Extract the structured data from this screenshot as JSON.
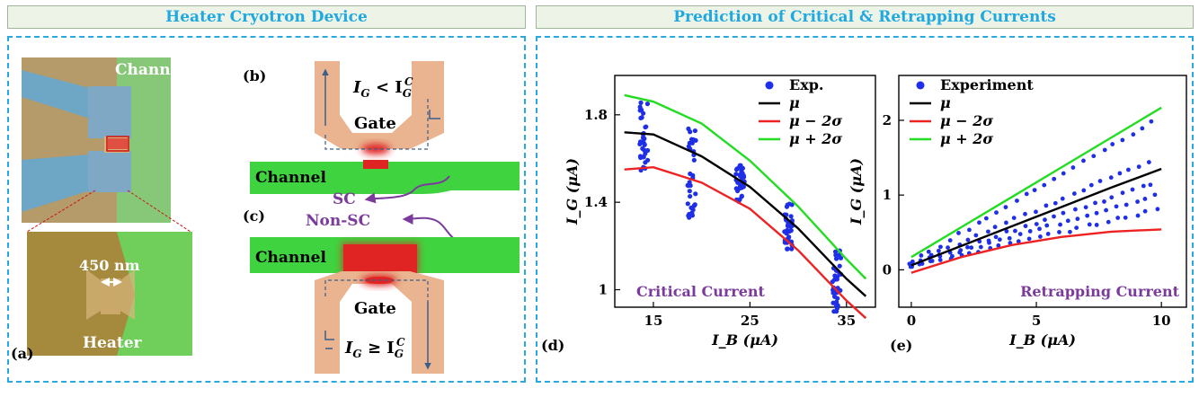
{
  "headers": {
    "left": "Heater Cryotron Device",
    "right": "Prediction of Critical & Retrapping Currents"
  },
  "device": {
    "panel_a": "(a)",
    "panel_b": "(b)",
    "panel_c": "(c)",
    "panel_d": "(d)",
    "panel_e": "(e)",
    "channel_label": "Channel",
    "heater_label": "Heater",
    "width_label": "450 nm",
    "gate_label": "Gate",
    "sc_label": "SC",
    "nonsc_label": "Non-SC",
    "cond_lt_main": "I",
    "cond_lt_sub": "G",
    "cond_lt_op": " < I",
    "cond_lt_sub2": "G",
    "cond_lt_sup2": "C",
    "cond_ge_main": "I",
    "cond_ge_sub": "G",
    "cond_ge_op": " ≥ I",
    "cond_ge_sub2": "G",
    "cond_ge_sup2": "C"
  },
  "colors": {
    "channel_green": "#3fd43f",
    "gate_tan": "#e9b48f",
    "hot_red": "#e02424",
    "dots_blue": "#1f2fe8",
    "mu_black": "#000000",
    "minus_red": "#ee2222",
    "plus_green": "#22dd22",
    "arrow_purple": "#7a3b9c",
    "frame_blue": "#2aa8e0"
  },
  "chart_data": [
    {
      "type": "scatter",
      "title": "Critical Current",
      "xlabel": "I_B (μA)",
      "ylabel": "I_G (μA)",
      "xlim": [
        11,
        38
      ],
      "ylim": [
        0.92,
        1.98
      ],
      "xticks": [
        "15",
        "25",
        "35"
      ],
      "xtick_values": [
        15,
        25,
        35
      ],
      "yticks": [
        "1",
        "1.4",
        "1.8"
      ],
      "ytick_values": [
        1,
        1.4,
        1.8
      ],
      "legend": [
        "Exp.",
        "μ",
        "μ − 2σ",
        "μ + 2σ"
      ],
      "scatter_clusters": [
        {
          "x": 14,
          "ymin": 1.53,
          "ymax": 1.86
        },
        {
          "x": 19,
          "ymin": 1.33,
          "ymax": 1.74
        },
        {
          "x": 24,
          "ymin": 1.4,
          "ymax": 1.57
        },
        {
          "x": 29,
          "ymin": 1.18,
          "ymax": 1.4
        },
        {
          "x": 34,
          "ymin": 0.9,
          "ymax": 1.18
        }
      ],
      "series": [
        {
          "name": "μ",
          "x": [
            12,
            15,
            20,
            25,
            30,
            35,
            37
          ],
          "y": [
            1.72,
            1.71,
            1.61,
            1.47,
            1.28,
            1.05,
            0.97
          ]
        },
        {
          "name": "μ − 2σ",
          "x": [
            12,
            15,
            20,
            25,
            30,
            35,
            37
          ],
          "y": [
            1.55,
            1.56,
            1.49,
            1.37,
            1.18,
            0.95,
            0.87
          ]
        },
        {
          "name": "μ + 2σ",
          "x": [
            12,
            15,
            20,
            25,
            30,
            35,
            37
          ],
          "y": [
            1.89,
            1.86,
            1.76,
            1.59,
            1.38,
            1.14,
            1.05
          ]
        }
      ]
    },
    {
      "type": "scatter",
      "title": "Retrapping Current",
      "xlabel": "I_B (μA)",
      "ylabel": "I_G (μA)",
      "xlim": [
        -0.5,
        11
      ],
      "ylim": [
        -0.5,
        2.6
      ],
      "xticks": [
        "0",
        "5",
        "10"
      ],
      "xtick_values": [
        0,
        5,
        10
      ],
      "yticks": [
        "0",
        "1",
        "2"
      ],
      "ytick_values": [
        0,
        1,
        2
      ],
      "legend": [
        "Experiment",
        "μ",
        "μ − 2σ",
        "μ + 2σ"
      ],
      "scatter_lines": [
        {
          "x0": 0,
          "y0": 0.1,
          "x1": 9.6,
          "y1": 1.97
        },
        {
          "x0": 0,
          "y0": 0.08,
          "x1": 9.5,
          "y1": 1.45
        },
        {
          "x0": 0,
          "y0": 0.06,
          "x1": 9.6,
          "y1": 1.15
        },
        {
          "x0": 0,
          "y0": 0.05,
          "x1": 9.8,
          "y1": 1.0
        },
        {
          "x0": 0,
          "y0": 0.04,
          "x1": 9.8,
          "y1": 0.8
        }
      ],
      "series": [
        {
          "name": "μ",
          "x": [
            0,
            2,
            4,
            6,
            8,
            10
          ],
          "y": [
            0.06,
            0.32,
            0.58,
            0.84,
            1.1,
            1.35
          ]
        },
        {
          "name": "μ − 2σ",
          "x": [
            0,
            2,
            4,
            6,
            8,
            10
          ],
          "y": [
            -0.04,
            0.17,
            0.33,
            0.44,
            0.51,
            0.54
          ]
        },
        {
          "name": "μ + 2σ",
          "x": [
            0,
            2,
            4,
            6,
            8,
            10
          ],
          "y": [
            0.17,
            0.57,
            0.97,
            1.37,
            1.77,
            2.17
          ]
        }
      ]
    }
  ]
}
